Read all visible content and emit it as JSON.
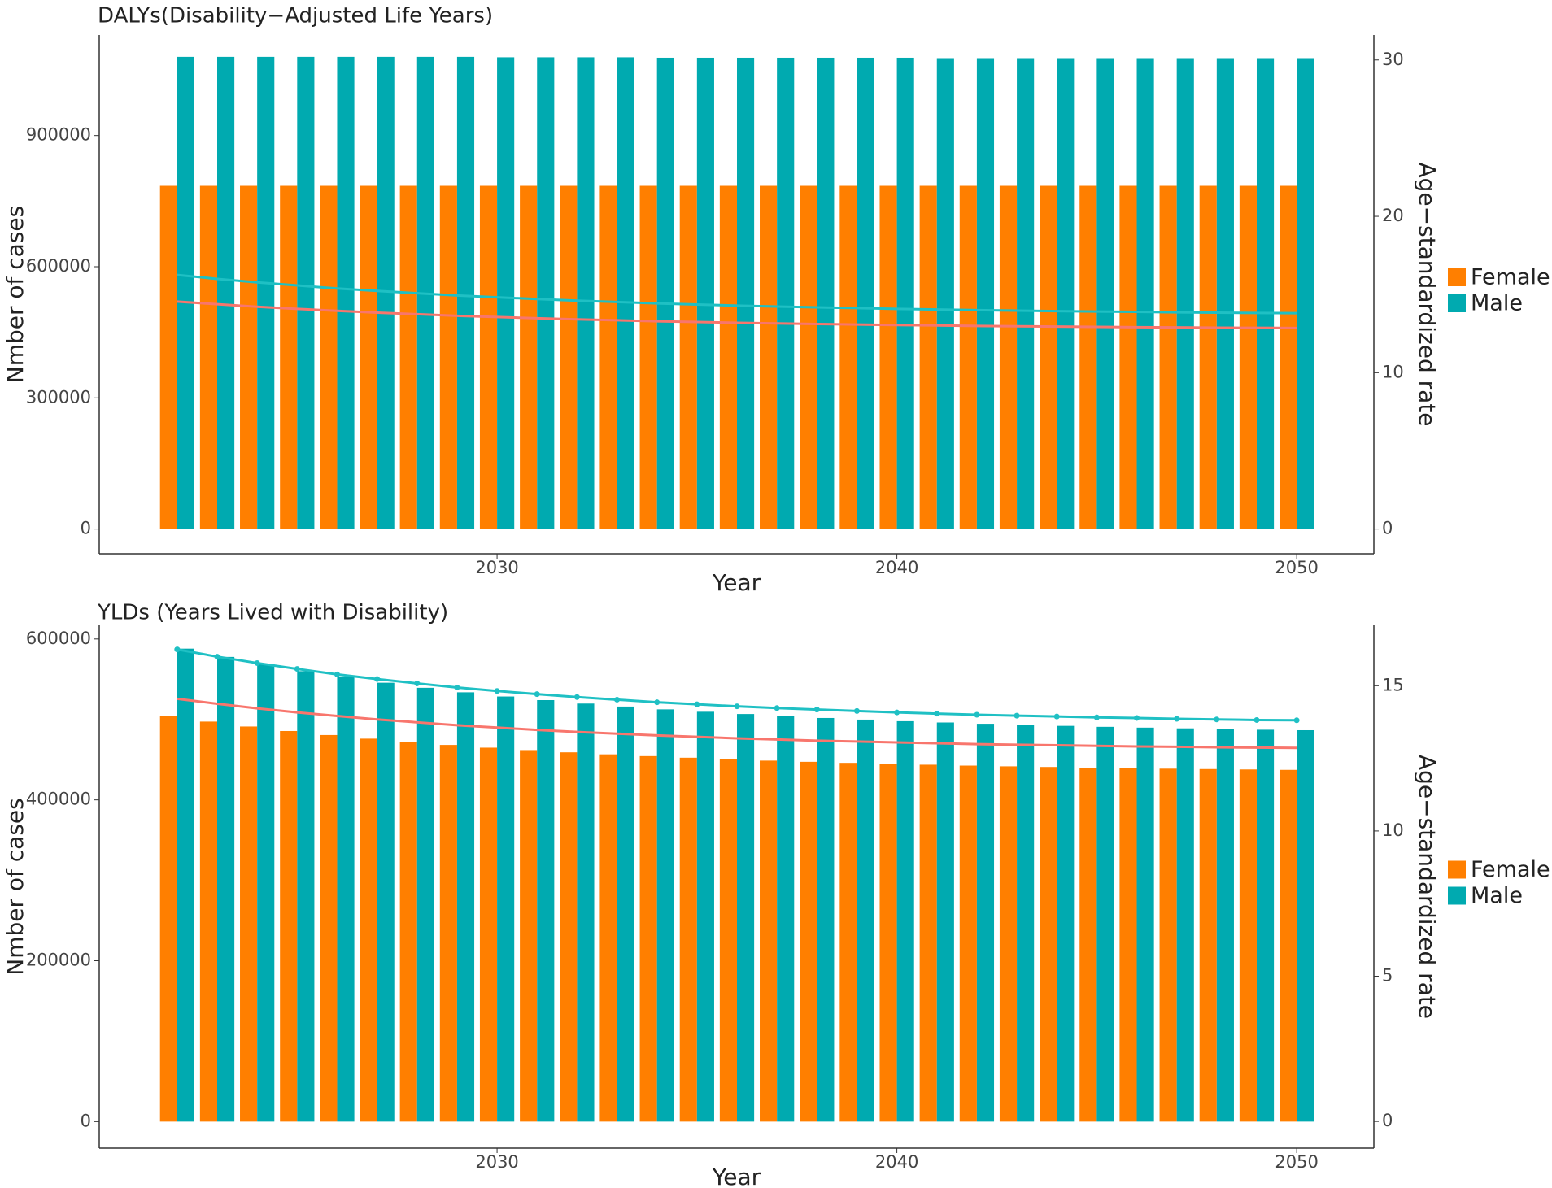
{
  "chart_data": [
    {
      "type": "bar_line",
      "title": "DALYs(Disability−Adjusted Life Years)",
      "x_label": "Year",
      "y_label": "Nmber of cases",
      "y2_label": "Age−standardized rate",
      "x": [
        2022,
        2023,
        2024,
        2025,
        2026,
        2027,
        2028,
        2029,
        2030,
        2031,
        2032,
        2033,
        2034,
        2035,
        2036,
        2037,
        2038,
        2039,
        2040,
        2041,
        2042,
        2043,
        2044,
        2045,
        2046,
        2047,
        2048,
        2049,
        2050
      ],
      "xlim": [
        2020.05,
        2051.93
      ],
      "xticks": [
        2030,
        2040,
        2050
      ],
      "ylim": [
        -56500,
        1130000
      ],
      "yticks": [
        0,
        300000,
        600000,
        900000
      ],
      "y2lim": [
        -1.58,
        31.6
      ],
      "y2ticks": [
        0,
        10,
        20,
        30
      ],
      "series": [
        {
          "name": "Female",
          "color": "#ff7f00",
          "line_color": "#f8766d",
          "markers": false,
          "values": [
            785000,
            785000,
            785000,
            785000,
            785000,
            785000,
            785000,
            785000,
            785000,
            785000,
            785000,
            785000,
            785000,
            785000,
            785000,
            785000,
            785000,
            785000,
            785000,
            785000,
            785000,
            785000,
            785000,
            785000,
            785000,
            785000,
            785000,
            785000,
            785000
          ],
          "rates": [
            14.55,
            14.38,
            14.22,
            14.08,
            13.96,
            13.84,
            13.74,
            13.64,
            13.56,
            13.48,
            13.41,
            13.35,
            13.29,
            13.24,
            13.19,
            13.15,
            13.11,
            13.08,
            13.05,
            13.02,
            12.99,
            12.97,
            12.95,
            12.93,
            12.91,
            12.9,
            12.88,
            12.87,
            12.86
          ]
        },
        {
          "name": "Male",
          "color": "#00aab0",
          "line_color": "#1fc0c4",
          "markers": false,
          "values": [
            1080000,
            1080000,
            1080000,
            1080000,
            1080000,
            1080000,
            1080000,
            1080000,
            1079000,
            1079000,
            1079000,
            1079000,
            1078000,
            1078000,
            1078000,
            1078000,
            1078000,
            1078000,
            1078000,
            1077000,
            1077000,
            1077000,
            1077000,
            1077000,
            1077000,
            1077000,
            1077000,
            1077000,
            1077000
          ],
          "rates": [
            16.25,
            16.0,
            15.78,
            15.58,
            15.39,
            15.23,
            15.08,
            14.94,
            14.82,
            14.71,
            14.61,
            14.52,
            14.43,
            14.36,
            14.29,
            14.23,
            14.18,
            14.13,
            14.08,
            14.04,
            14.0,
            13.97,
            13.94,
            13.91,
            13.89,
            13.86,
            13.84,
            13.82,
            13.81
          ]
        }
      ]
    },
    {
      "type": "bar_line",
      "title": "YLDs (Years Lived with Disability)",
      "x_label": "Year",
      "y_label": "Nmber of cases",
      "y2_label": "Age−standardized rate",
      "x": [
        2022,
        2023,
        2024,
        2025,
        2026,
        2027,
        2028,
        2029,
        2030,
        2031,
        2032,
        2033,
        2034,
        2035,
        2036,
        2037,
        2038,
        2039,
        2040,
        2041,
        2042,
        2043,
        2044,
        2045,
        2046,
        2047,
        2048,
        2049,
        2050
      ],
      "xlim": [
        2020.05,
        2051.93
      ],
      "xticks": [
        2030,
        2040,
        2050
      ],
      "ylim": [
        -33000,
        617000
      ],
      "yticks": [
        0,
        200000,
        400000,
        600000
      ],
      "y2lim": [
        -0.92,
        17.08
      ],
      "y2ticks": [
        0,
        5,
        10,
        15
      ],
      "series": [
        {
          "name": "Female",
          "color": "#ff7f00",
          "line_color": "#f8766d",
          "markers": false,
          "values": [
            504000,
            497300,
            491200,
            485600,
            480600,
            476100,
            472000,
            468300,
            464900,
            461900,
            459100,
            456600,
            454400,
            452400,
            450500,
            448800,
            447300,
            446000,
            444700,
            443700,
            442600,
            441700,
            440900,
            440100,
            439500,
            438800,
            438300,
            437800,
            437300
          ],
          "rates": [
            14.55,
            14.38,
            14.22,
            14.08,
            13.96,
            13.84,
            13.74,
            13.64,
            13.56,
            13.48,
            13.41,
            13.35,
            13.29,
            13.24,
            13.19,
            13.15,
            13.11,
            13.08,
            13.05,
            13.02,
            12.99,
            12.97,
            12.95,
            12.93,
            12.91,
            12.9,
            12.88,
            12.87,
            12.86
          ]
        },
        {
          "name": "Male",
          "color": "#00aab0",
          "line_color": "#1fc0c4",
          "markers": true,
          "values": [
            588000,
            577700,
            568500,
            560000,
            552400,
            545600,
            539300,
            533700,
            528500,
            524000,
            519700,
            516000,
            512500,
            509500,
            506700,
            504100,
            501800,
            499800,
            497800,
            496200,
            494600,
            493200,
            492000,
            490800,
            489800,
            488900,
            488000,
            487200,
            486600
          ],
          "rates": [
            16.25,
            16.0,
            15.78,
            15.58,
            15.39,
            15.23,
            15.08,
            14.94,
            14.82,
            14.71,
            14.61,
            14.52,
            14.43,
            14.36,
            14.29,
            14.23,
            14.18,
            14.13,
            14.08,
            14.04,
            14.0,
            13.97,
            13.94,
            13.91,
            13.89,
            13.86,
            13.84,
            13.82,
            13.81
          ]
        }
      ]
    }
  ]
}
